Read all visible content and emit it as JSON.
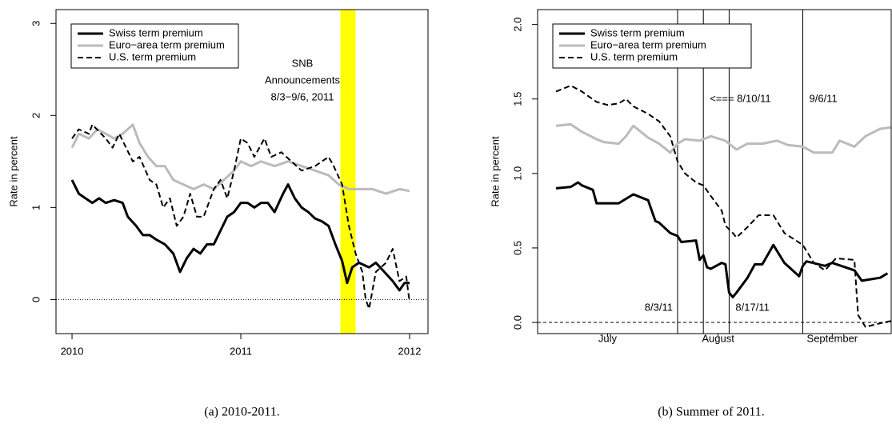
{
  "chart_data": [
    {
      "type": "line",
      "caption": "(a) 2010-2011.",
      "ylabel": "Rate in percent",
      "xlim": [
        2009.905,
        2012.109
      ],
      "xticks": [
        2010,
        2011,
        2012
      ],
      "ylim": [
        -0.37,
        3.15
      ],
      "yticks": [
        0,
        1,
        2,
        3
      ],
      "hline": 0,
      "highlight": [
        2011.59,
        2011.68
      ],
      "highlight_color": "#ffff00",
      "annotation": [
        "SNB",
        "Announcements",
        "8/3−9/6, 2011"
      ],
      "series": [
        {
          "name": "Swiss term premium",
          "color": "#000000",
          "dash": false,
          "width": 3,
          "x": [
            2010.0,
            2010.04,
            2010.08,
            2010.12,
            2010.16,
            2010.2,
            2010.25,
            2010.3,
            2010.33,
            2010.38,
            2010.42,
            2010.46,
            2010.5,
            2010.55,
            2010.6,
            2010.64,
            2010.68,
            2010.72,
            2010.76,
            2010.8,
            2010.84,
            2010.88,
            2010.92,
            2010.96,
            2011.0,
            2011.04,
            2011.08,
            2011.12,
            2011.16,
            2011.2,
            2011.25,
            2011.28,
            2011.32,
            2011.36,
            2011.4,
            2011.44,
            2011.48,
            2011.52,
            2011.56,
            2011.6,
            2011.63,
            2011.66,
            2011.7,
            2011.76,
            2011.8,
            2011.85,
            2011.9,
            2011.94,
            2011.97,
            2012.0
          ],
          "values": [
            1.3,
            1.15,
            1.1,
            1.05,
            1.1,
            1.05,
            1.08,
            1.05,
            0.9,
            0.8,
            0.7,
            0.7,
            0.65,
            0.6,
            0.5,
            0.3,
            0.45,
            0.55,
            0.5,
            0.6,
            0.6,
            0.75,
            0.9,
            0.95,
            1.05,
            1.05,
            1.0,
            1.05,
            1.05,
            0.95,
            1.15,
            1.25,
            1.1,
            1.0,
            0.95,
            0.88,
            0.85,
            0.8,
            0.6,
            0.42,
            0.18,
            0.35,
            0.4,
            0.35,
            0.4,
            0.3,
            0.2,
            0.1,
            0.18,
            0.18
          ]
        },
        {
          "name": "Euro−area term premium",
          "color": "#bbbbbb",
          "dash": false,
          "width": 3,
          "x": [
            2010.0,
            2010.04,
            2010.1,
            2010.15,
            2010.2,
            2010.25,
            2010.3,
            2010.36,
            2010.4,
            2010.45,
            2010.5,
            2010.55,
            2010.6,
            2010.66,
            2010.72,
            2010.78,
            2010.84,
            2010.9,
            2010.96,
            2011.0,
            2011.06,
            2011.12,
            2011.2,
            2011.28,
            2011.36,
            2011.44,
            2011.52,
            2011.58,
            2011.64,
            2011.7,
            2011.78,
            2011.86,
            2011.94,
            2012.0
          ],
          "values": [
            1.65,
            1.8,
            1.75,
            1.85,
            1.8,
            1.75,
            1.8,
            1.9,
            1.7,
            1.55,
            1.45,
            1.45,
            1.3,
            1.25,
            1.2,
            1.25,
            1.2,
            1.3,
            1.4,
            1.5,
            1.45,
            1.5,
            1.45,
            1.5,
            1.45,
            1.4,
            1.35,
            1.25,
            1.2,
            1.2,
            1.2,
            1.15,
            1.2,
            1.18
          ]
        },
        {
          "name": "U.S. term premium",
          "color": "#000000",
          "dash": true,
          "width": 2,
          "x": [
            2010.0,
            2010.04,
            2010.1,
            2010.12,
            2010.2,
            2010.24,
            2010.28,
            2010.32,
            2010.36,
            2010.4,
            2010.46,
            2010.5,
            2010.54,
            2010.58,
            2010.62,
            2010.66,
            2010.7,
            2010.74,
            2010.78,
            2010.84,
            2010.88,
            2010.92,
            2010.96,
            2011.0,
            2011.04,
            2011.08,
            2011.14,
            2011.18,
            2011.24,
            2011.3,
            2011.36,
            2011.44,
            2011.52,
            2011.55,
            2011.6,
            2011.64,
            2011.68,
            2011.72,
            2011.74,
            2011.76,
            2011.8,
            2011.86,
            2011.9,
            2011.94,
            2011.98,
            2012.0
          ],
          "values": [
            1.75,
            1.85,
            1.8,
            1.9,
            1.75,
            1.65,
            1.8,
            1.65,
            1.5,
            1.55,
            1.3,
            1.25,
            1.0,
            1.1,
            0.8,
            0.9,
            1.15,
            0.9,
            0.9,
            1.2,
            1.3,
            1.1,
            1.4,
            1.75,
            1.7,
            1.55,
            1.75,
            1.55,
            1.6,
            1.5,
            1.4,
            1.45,
            1.55,
            1.45,
            1.25,
            0.8,
            0.5,
            0.3,
            0.0,
            -0.1,
            0.3,
            0.4,
            0.55,
            0.2,
            0.25,
            -0.03
          ]
        }
      ]
    },
    {
      "type": "line",
      "caption": "(b) Summer of 2011.",
      "ylabel": "Rate in percent",
      "xlim": [
        "2011-06-26",
        "2011-09-30"
      ],
      "xticks": [
        {
          "value": "2011-07-15",
          "label": "July"
        },
        {
          "value": "2011-08-14",
          "label": "August"
        },
        {
          "value": "2011-09-14",
          "label": "September"
        }
      ],
      "ylim": [
        -0.075,
        2.1
      ],
      "yticks": [
        {
          "value": 0,
          "label": "0.0"
        },
        {
          "value": 0.5,
          "label": "0.5"
        },
        {
          "value": 1,
          "label": "1.0"
        },
        {
          "value": 1.5,
          "label": "1.5"
        },
        {
          "value": 2,
          "label": "2.0"
        }
      ],
      "hline": 0,
      "vlines": [
        {
          "x": "2011-08-03",
          "label": "8/3/11"
        },
        {
          "x": "2011-08-10",
          "label": "<=== 8/10/11"
        },
        {
          "x": "2011-08-17",
          "label": "8/17/11"
        },
        {
          "x": "2011-09-06",
          "label": "9/6/11"
        }
      ],
      "series": [
        {
          "name": "Swiss term premium",
          "color": "#000000",
          "dash": false,
          "width": 3,
          "x": [
            "2011-07-01",
            "2011-07-05",
            "2011-07-07",
            "2011-07-08",
            "2011-07-11",
            "2011-07-12",
            "2011-07-14",
            "2011-07-18",
            "2011-07-20",
            "2011-07-22",
            "2011-07-26",
            "2011-07-27",
            "2011-07-28",
            "2011-07-29",
            "2011-08-01",
            "2011-08-03",
            "2011-08-04",
            "2011-08-08",
            "2011-08-09",
            "2011-08-10",
            "2011-08-11",
            "2011-08-12",
            "2011-08-15",
            "2011-08-16",
            "2011-08-17",
            "2011-08-18",
            "2011-08-19",
            "2011-08-22",
            "2011-08-24",
            "2011-08-26",
            "2011-08-29",
            "2011-09-01",
            "2011-09-05",
            "2011-09-06",
            "2011-09-07",
            "2011-09-12",
            "2011-09-14",
            "2011-09-20",
            "2011-09-22",
            "2011-09-27",
            "2011-09-29"
          ],
          "values": [
            0.9,
            0.91,
            0.94,
            0.92,
            0.89,
            0.8,
            0.8,
            0.8,
            0.83,
            0.86,
            0.82,
            0.75,
            0.68,
            0.67,
            0.6,
            0.58,
            0.54,
            0.55,
            0.42,
            0.45,
            0.37,
            0.36,
            0.4,
            0.39,
            0.2,
            0.17,
            0.2,
            0.3,
            0.39,
            0.39,
            0.52,
            0.4,
            0.31,
            0.38,
            0.41,
            0.38,
            0.4,
            0.35,
            0.28,
            0.3,
            0.33
          ]
        },
        {
          "name": "Euro−area term premium",
          "color": "#bbbbbb",
          "dash": false,
          "width": 3,
          "x": [
            "2011-07-01",
            "2011-07-05",
            "2011-07-08",
            "2011-07-12",
            "2011-07-14",
            "2011-07-18",
            "2011-07-20",
            "2011-07-22",
            "2011-07-26",
            "2011-07-29",
            "2011-08-01",
            "2011-08-03",
            "2011-08-05",
            "2011-08-09",
            "2011-08-12",
            "2011-08-16",
            "2011-08-19",
            "2011-08-22",
            "2011-08-26",
            "2011-08-30",
            "2011-09-02",
            "2011-09-06",
            "2011-09-09",
            "2011-09-14",
            "2011-09-16",
            "2011-09-20",
            "2011-09-23",
            "2011-09-27",
            "2011-09-30"
          ],
          "values": [
            1.32,
            1.33,
            1.28,
            1.23,
            1.21,
            1.2,
            1.25,
            1.32,
            1.24,
            1.2,
            1.14,
            1.2,
            1.23,
            1.22,
            1.25,
            1.22,
            1.16,
            1.2,
            1.2,
            1.22,
            1.19,
            1.18,
            1.14,
            1.14,
            1.22,
            1.18,
            1.25,
            1.3,
            1.31
          ]
        },
        {
          "name": "U.S. term premium",
          "color": "#000000",
          "dash": true,
          "width": 2,
          "x": [
            "2011-07-01",
            "2011-07-05",
            "2011-07-08",
            "2011-07-12",
            "2011-07-15",
            "2011-07-18",
            "2011-07-20",
            "2011-07-22",
            "2011-07-26",
            "2011-07-29",
            "2011-08-01",
            "2011-08-03",
            "2011-08-05",
            "2011-08-08",
            "2011-08-10",
            "2011-08-12",
            "2011-08-15",
            "2011-08-16",
            "2011-08-18",
            "2011-08-19",
            "2011-08-22",
            "2011-08-25",
            "2011-08-29",
            "2011-09-01",
            "2011-09-06",
            "2011-09-09",
            "2011-09-12",
            "2011-09-15",
            "2011-09-20",
            "2011-09-21",
            "2011-09-23",
            "2011-09-28",
            "2011-09-30"
          ],
          "values": [
            1.55,
            1.59,
            1.55,
            1.48,
            1.46,
            1.47,
            1.5,
            1.45,
            1.4,
            1.35,
            1.25,
            1.08,
            1.0,
            0.94,
            0.92,
            0.85,
            0.75,
            0.65,
            0.6,
            0.57,
            0.64,
            0.72,
            0.72,
            0.6,
            0.52,
            0.4,
            0.35,
            0.43,
            0.42,
            0.05,
            -0.03,
            0.0,
            0.01
          ]
        }
      ]
    }
  ]
}
